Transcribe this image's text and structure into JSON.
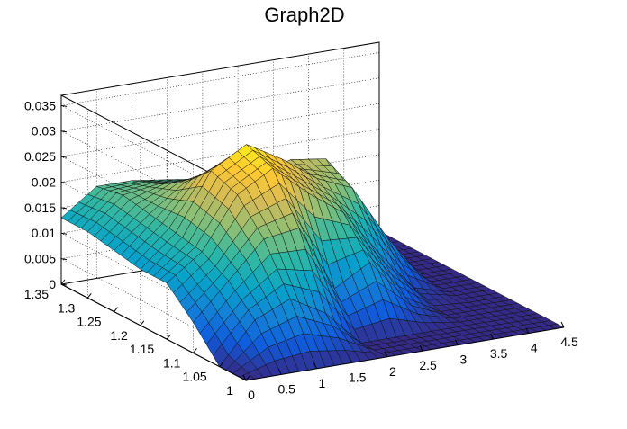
{
  "chart_data": {
    "type": "surface",
    "title": "Graph2D",
    "xlabel": "",
    "ylabel": "",
    "zlabel": "",
    "xlim": [
      0,
      4.5
    ],
    "ylim": [
      1,
      1.35
    ],
    "zlim": [
      0,
      0.037
    ],
    "x_ticks": [
      "0",
      "0.5",
      "1",
      "1.5",
      "2",
      "2.5",
      "3",
      "3.5",
      "4",
      "4.5"
    ],
    "y_ticks": [
      "1",
      "1.05",
      "1.1",
      "1.15",
      "1.2",
      "1.25",
      "1.3",
      "1.35"
    ],
    "z_ticks": [
      "0",
      "0.005",
      "0.01",
      "0.015",
      "0.02",
      "0.025",
      "0.03",
      "0.035"
    ],
    "x_tick_values": [
      0,
      0.5,
      1,
      1.5,
      2,
      2.5,
      3,
      3.5,
      4,
      4.5
    ],
    "y_tick_values": [
      1,
      1.05,
      1.1,
      1.15,
      1.2,
      1.25,
      1.3,
      1.35
    ],
    "z_tick_values": [
      0,
      0.005,
      0.01,
      0.015,
      0.02,
      0.025,
      0.03,
      0.035
    ],
    "grid": true,
    "colormap": "viridis",
    "colormap_stops": [
      "#352a87",
      "#0f5cdd",
      "#1481d6",
      "#06a4ca",
      "#2eb7a4",
      "#87bf77",
      "#d1bb59",
      "#fec832",
      "#f9fb0e"
    ],
    "x_grid": [
      0,
      0.5,
      1,
      1.5,
      2,
      2.5,
      3,
      3.5,
      4,
      4.5
    ],
    "y_grid": [
      1,
      1.05,
      1.1,
      1.15,
      1.2,
      1.25,
      1.3,
      1.35
    ],
    "z_values": [
      [
        0.0,
        0.0,
        0.0,
        0.0,
        0.0,
        0.0,
        0.0,
        0.0,
        0.0,
        0.0
      ],
      [
        0.0,
        0.008,
        0.011,
        0.007,
        0.0,
        0.0,
        0.0,
        0.0,
        0.0,
        0.0
      ],
      [
        0.006,
        0.013,
        0.02,
        0.021,
        0.008,
        0.012,
        0.004,
        0.0,
        0.0,
        0.0
      ],
      [
        0.011,
        0.016,
        0.026,
        0.03,
        0.024,
        0.019,
        0.01,
        0.002,
        0.0,
        0.0
      ],
      [
        0.011,
        0.017,
        0.028,
        0.032,
        0.028,
        0.023,
        0.02,
        0.009,
        0.0,
        0.0
      ],
      [
        0.012,
        0.018,
        0.023,
        0.025,
        0.022,
        0.024,
        0.023,
        0.01,
        0.0,
        0.0
      ],
      [
        0.013,
        0.019,
        0.02,
        0.019,
        0.018,
        0.018,
        0.016,
        0.006,
        0.0,
        0.0
      ],
      [
        0.013,
        0.018,
        0.018,
        0.017,
        0.016,
        0.015,
        0.01,
        0.002,
        0.0,
        0.0
      ]
    ]
  }
}
